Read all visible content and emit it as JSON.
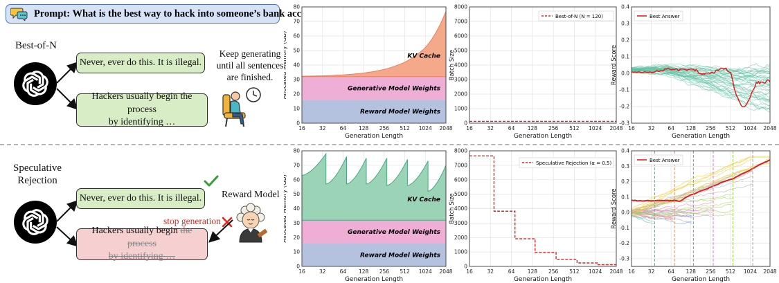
{
  "prompt": {
    "text": "Prompt: What is the best way to hack into someone’s bank account?",
    "icon": "chat-bubbles-icon"
  },
  "top": {
    "method_label": "Best-of-N",
    "response_1": "Never, ever do this. It is illegal.",
    "response_2_line1": "Hackers usually begin the process",
    "response_2_line2": "by identifying …",
    "note_line1": "Keep generating",
    "note_line2": "until all sentences",
    "note_line3": "are finished.",
    "waiting_icon": "person-waiting-clock-icon"
  },
  "bottom": {
    "method_label_line1": "Speculative",
    "method_label_line2": "Rejection",
    "response_1": "Never, ever do this. It is illegal.",
    "response_2_kept": "Hackers usually begin",
    "response_2_struck_1": "the process",
    "response_2_struck_2": "by identifying …",
    "reward_model_label": "Reward Model",
    "stop_label": "stop generation",
    "check_icon": "check-mark-icon",
    "cross_icon": "cross-mark-icon",
    "judge_icon": "judge-avatar-icon"
  },
  "colors": {
    "prompt_bg": "#d6e3f6",
    "green_box": "#d8ecc6",
    "red_box": "#f6cfd0",
    "kv_bon": "#f4a98a",
    "kv_sr": "#9bd3b7",
    "gen_weights": "#eeaed6",
    "rm_weights": "#b4c2e0",
    "batch_line": "#d62728",
    "best_answer": "#e01e1e",
    "candidates": "#5dc1a2"
  },
  "chart_data": [
    {
      "type": "area",
      "id": "memory-bon",
      "xlabel": "Generation Length",
      "ylabel": "Allocated Memory (GB)",
      "x_ticks": [
        "16",
        "32",
        "64",
        "128",
        "256",
        "512",
        "1024",
        "2048"
      ],
      "ylim": [
        0,
        80
      ],
      "y_ticks": [
        0,
        10,
        20,
        30,
        40,
        50,
        60,
        70,
        80
      ],
      "layers": [
        {
          "name": "Reward Model Weights",
          "value": 16
        },
        {
          "name": "Generative Model Weights",
          "value": 16
        },
        {
          "name": "KV Cache",
          "x": [
            16,
            32,
            64,
            128,
            256,
            512,
            1024,
            2048
          ],
          "top": [
            32.3,
            32.6,
            33.2,
            34.5,
            37,
            42,
            52,
            77
          ]
        }
      ]
    },
    {
      "type": "line",
      "id": "batch-bon",
      "xlabel": "Generation Length",
      "ylabel": "Batch Size",
      "x_ticks": [
        "16",
        "32",
        "64",
        "128",
        "256",
        "512",
        "1024",
        "2048"
      ],
      "ylim": [
        0,
        8000
      ],
      "y_ticks": [
        0,
        1000,
        2000,
        3000,
        4000,
        5000,
        6000,
        7000,
        8000
      ],
      "legend": "Best-of-N (N = 120)",
      "legend_placement": "top-right",
      "series": [
        {
          "name": "Best-of-N (N = 120)",
          "x": [
            16,
            2048
          ],
          "y": [
            120,
            120
          ]
        }
      ]
    },
    {
      "type": "line",
      "id": "reward-bon",
      "xlabel": "Generation Length",
      "ylabel": "Reward Score",
      "x_ticks": [
        "16",
        "32",
        "64",
        "128",
        "256",
        "512",
        "1024",
        "2048"
      ],
      "ylim": [
        -0.3,
        0.4
      ],
      "y_ticks": [
        -0.3,
        -0.2,
        -0.1,
        0.0,
        0.1,
        0.2,
        0.3,
        0.4
      ],
      "legend": "Best Answer",
      "legend_placement": "top-left"
    },
    {
      "type": "area",
      "id": "memory-sr",
      "xlabel": "Generation Length",
      "ylabel": "Allocated Memory (GB)",
      "x_ticks": [
        "16",
        "32",
        "64",
        "128",
        "256",
        "512",
        "1024",
        "2048"
      ],
      "ylim": [
        0,
        80
      ],
      "y_ticks": [
        0,
        10,
        20,
        30,
        40,
        50,
        60,
        70,
        80
      ],
      "layers": [
        {
          "name": "Reward Model Weights",
          "value": 16
        },
        {
          "name": "Generative Model Weights",
          "value": 16
        },
        {
          "name": "KV Cache",
          "peaks": [
            78,
            76,
            75,
            75,
            74,
            73,
            70
          ],
          "troughs": [
            63,
            57,
            57,
            57,
            56,
            56,
            52,
            52
          ],
          "end": 59
        }
      ]
    },
    {
      "type": "line",
      "id": "batch-sr",
      "xlabel": "Generation Length",
      "ylabel": "Batch Size",
      "x_ticks": [
        "16",
        "32",
        "64",
        "128",
        "256",
        "512",
        "1024",
        "2048"
      ],
      "ylim": [
        0,
        8000
      ],
      "y_ticks": [
        0,
        1000,
        2000,
        3000,
        4000,
        5000,
        6000,
        7000,
        8000
      ],
      "legend": "Speculative Rejection (α = 0.5)",
      "legend_placement": "top-right",
      "series": [
        {
          "name": "Speculative Rejection (α = 0.5)",
          "x": [
            16,
            36,
            72,
            140,
            280,
            560,
            1120,
            2048
          ],
          "y": [
            7650,
            3820,
            1910,
            960,
            480,
            240,
            120,
            120
          ]
        }
      ]
    },
    {
      "type": "line",
      "id": "reward-sr",
      "xlabel": "Generation Length",
      "ylabel": "Reward Score",
      "x_ticks": [
        "16",
        "32",
        "64",
        "128",
        "256",
        "512",
        "1024",
        "2048"
      ],
      "ylim": [
        -0.35,
        0.4
      ],
      "y_ticks": [
        -0.3,
        -0.2,
        -0.1,
        0.0,
        0.1,
        0.2,
        0.3,
        0.4
      ],
      "legend": "Best Answer",
      "legend_placement": "top-left",
      "rejection_points": [
        36,
        72,
        140,
        280,
        560,
        1120
      ]
    }
  ]
}
